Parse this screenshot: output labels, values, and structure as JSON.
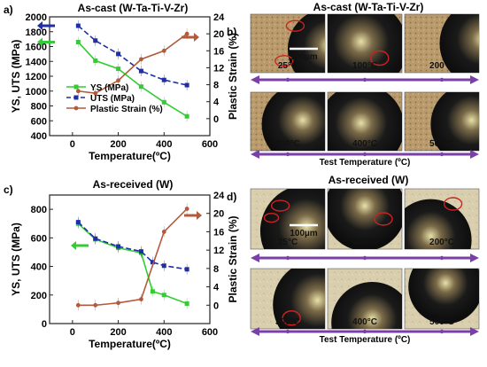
{
  "colors": {
    "ys": "#33cc33",
    "uts": "#1f2fa8",
    "strain": "#b45a3c",
    "arrow_band": "#7b3fa8",
    "circle": "#cc2222"
  },
  "panel_a": {
    "label": "a)",
    "title": "As-cast (W-Ta-Ti-V-Z r)"
  },
  "panel_b": {
    "label": "b)",
    "title": "As-cast (W-Ta-Ti-V-Zr)",
    "scale_bar": "100µm",
    "temps_row1": [
      "25°C",
      "100°C",
      "200°C"
    ],
    "temps_row2": [
      "300°C",
      "400°C",
      "500°C"
    ],
    "axis_label": "Test Temperature (ºC)"
  },
  "panel_c": {
    "label": "c)",
    "title": "As-received (W)"
  },
  "panel_d": {
    "label": "d)",
    "title": "As-received (W)",
    "scale_bar": "100µm",
    "temps_row1": [
      "25°C",
      "100°C",
      "200°C"
    ],
    "temps_row2": [
      "300°C",
      "400°C",
      "500°C"
    ],
    "axis_label": "Test Temperature (ºC)"
  },
  "chart_data": [
    {
      "type": "line",
      "panel": "a",
      "title": "As-cast (W-Ta-Ti-V-Zr)",
      "xlabel": "Temperature(ºC)",
      "ylabel": "YS, UTS (MPa)",
      "y2label": "Plastic Strain (%)",
      "xlim": [
        -100,
        600
      ],
      "ylim": [
        400,
        2000
      ],
      "y2lim": [
        -4,
        24
      ],
      "xticks": [
        0,
        200,
        400,
        600
      ],
      "yticks": [
        400,
        600,
        800,
        1000,
        1200,
        1400,
        1600,
        1800,
        2000
      ],
      "y2ticks": [
        0,
        4,
        8,
        12,
        16,
        20,
        24
      ],
      "legend_position": "center-left",
      "series": [
        {
          "name": "YS (MPa)",
          "axis": "left",
          "style": "solid-square",
          "color": "#33cc33",
          "x": [
            25,
            100,
            200,
            300,
            400,
            500
          ],
          "y": [
            1660,
            1410,
            1300,
            1060,
            850,
            660
          ]
        },
        {
          "name": "UTS (MPa)",
          "axis": "left",
          "style": "dashed-square",
          "color": "#1f2fa8",
          "x": [
            25,
            100,
            200,
            300,
            400,
            500
          ],
          "y": [
            1880,
            1680,
            1500,
            1270,
            1150,
            1080
          ]
        },
        {
          "name": "Plastic Strain (%)",
          "axis": "right",
          "style": "solid-circle",
          "color": "#b45a3c",
          "x": [
            25,
            100,
            200,
            300,
            400,
            500
          ],
          "y": [
            6.5,
            6,
            9,
            14,
            16,
            20
          ]
        }
      ]
    },
    {
      "type": "line",
      "panel": "c",
      "title": "As-received (W)",
      "xlabel": "Temperature(ºC)",
      "ylabel": "YS, UTS (MPa)",
      "y2label": "Plastic Strain (%)",
      "xlim": [
        -100,
        600
      ],
      "ylim": [
        0,
        900
      ],
      "y2lim": [
        -4,
        24
      ],
      "xticks": [
        0,
        200,
        400,
        600
      ],
      "yticks": [
        0,
        200,
        400,
        600,
        800
      ],
      "y2ticks": [
        0,
        4,
        8,
        12,
        16,
        20,
        24
      ],
      "series": [
        {
          "name": "YS (MPa)",
          "axis": "left",
          "style": "solid-square",
          "color": "#33cc33",
          "x": [
            25,
            100,
            200,
            300,
            350,
            400,
            500
          ],
          "y": [
            700,
            590,
            530,
            495,
            225,
            200,
            140
          ]
        },
        {
          "name": "UTS (MPa)",
          "axis": "left",
          "style": "dashed-square",
          "color": "#1f2fa8",
          "x": [
            25,
            100,
            200,
            300,
            350,
            400,
            500
          ],
          "y": [
            710,
            595,
            540,
            505,
            430,
            405,
            380
          ]
        },
        {
          "name": "Plastic Strain (%)",
          "axis": "right",
          "style": "solid-circle",
          "color": "#b45a3c",
          "x": [
            25,
            100,
            200,
            300,
            400,
            500
          ],
          "y": [
            0,
            0,
            0.5,
            1.3,
            16,
            21
          ]
        }
      ]
    }
  ]
}
